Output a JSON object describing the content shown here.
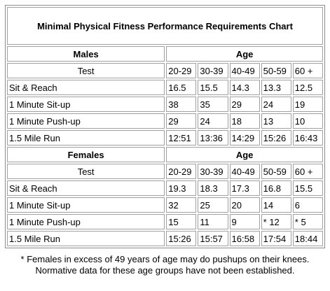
{
  "title": "Minimal Physical Fitness Performance Requirements Chart",
  "age_label": "Age",
  "test_label": "Test",
  "age_groups": [
    "20-29",
    "30-39",
    "40-49",
    "50-59",
    "60 +"
  ],
  "males": {
    "label": "Males",
    "rows": [
      {
        "test": "Sit & Reach",
        "values": [
          "16.5",
          "15.5",
          "14.3",
          "13.3",
          "12.5"
        ]
      },
      {
        "test": "1 Minute Sit-up",
        "values": [
          "38",
          "35",
          "29",
          "24",
          "19"
        ]
      },
      {
        "test": "1 Minute Push-up",
        "values": [
          "29",
          "24",
          "18",
          "13",
          "10"
        ]
      },
      {
        "test": "1.5 Mile Run",
        "values": [
          "12:51",
          "13:36",
          "14:29",
          "15:26",
          "16:43"
        ]
      }
    ]
  },
  "females": {
    "label": "Females",
    "rows": [
      {
        "test": "Sit & Reach",
        "values": [
          "19.3",
          "18.3",
          "17.3",
          "16.8",
          "15.5"
        ]
      },
      {
        "test": "1 Minute Sit-up",
        "values": [
          "32",
          "25",
          "20",
          "14",
          "6"
        ]
      },
      {
        "test": "1 Minute Push-up",
        "values": [
          "15",
          "11",
          "9",
          "* 12",
          "* 5"
        ]
      },
      {
        "test": "1.5 Mile Run",
        "values": [
          "15:26",
          "15:57",
          "16:58",
          "17:54",
          "18:44"
        ]
      }
    ]
  },
  "footnote_line1": "* Females in excess of 49 years of age may do pushups on their knees.",
  "footnote_line2": "Normative data for these age groups have not been established."
}
